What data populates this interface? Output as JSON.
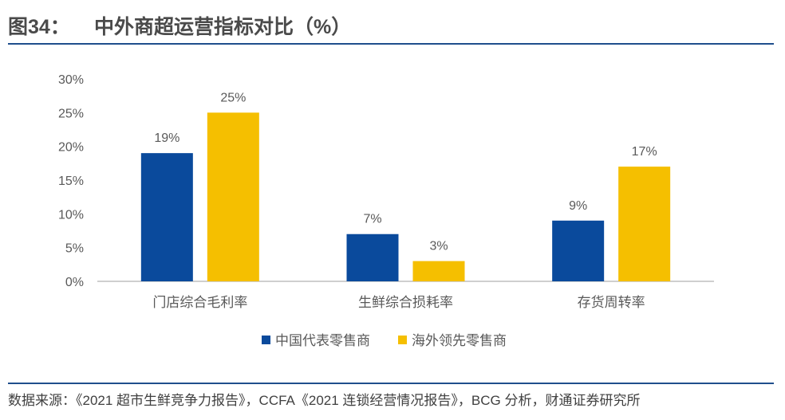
{
  "figure": {
    "label": "图34：",
    "title": "中外商超运营指标对比（%）",
    "source": "数据来源：《2021 超市生鲜竞争力报告》，CCFA《2021 连锁经营情况报告》，BCG 分析，财通证券研究所"
  },
  "colors": {
    "series1": "#0a4a9c",
    "series2": "#f5bf00",
    "axis": "#bfbfbf",
    "text": "#595959",
    "rule": "#1f4e8c"
  },
  "chart_data": {
    "type": "bar",
    "categories": [
      "门店综合毛利率",
      "生鲜综合损耗率",
      "存货周转率"
    ],
    "series": [
      {
        "name": "中国代表零售商",
        "values": [
          19,
          7,
          9
        ],
        "labels": [
          "19%",
          "7%",
          "9%"
        ]
      },
      {
        "name": "海外领先零售商",
        "values": [
          25,
          3,
          17
        ],
        "labels": [
          "25%",
          "3%",
          "17%"
        ]
      }
    ],
    "yticks": [
      "0%",
      "5%",
      "10%",
      "15%",
      "20%",
      "25%",
      "30%"
    ],
    "ylim": [
      0,
      30
    ],
    "grid": false,
    "legend_position": "bottom"
  }
}
